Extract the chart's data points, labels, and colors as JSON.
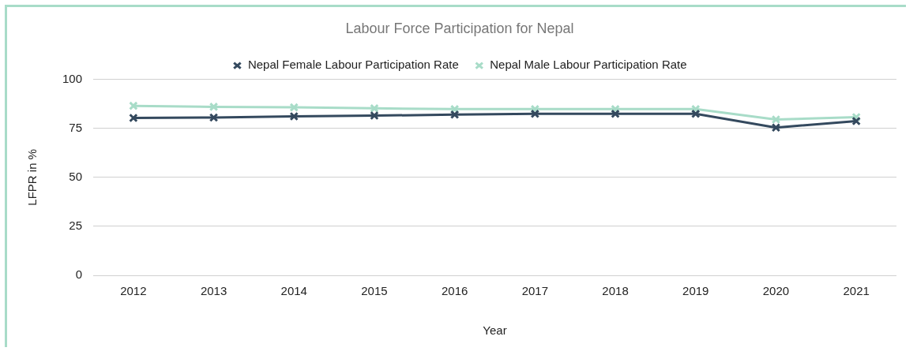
{
  "chart_data": {
    "type": "line",
    "title": "Labour Force Participation for Nepal",
    "xlabel": "Year",
    "ylabel": "LFPR in %",
    "categories": [
      "2012",
      "2013",
      "2014",
      "2015",
      "2016",
      "2017",
      "2018",
      "2019",
      "2020",
      "2021"
    ],
    "series": [
      {
        "name": "Nepal Female Labour Participation Rate",
        "color": "#34495e",
        "values": [
          80.3,
          80.5,
          81.1,
          81.5,
          82,
          82.4,
          82.4,
          82.4,
          75.4,
          78.7
        ]
      },
      {
        "name": "Nepal Male Labour Participation Rate",
        "color": "#a8dcc8",
        "values": [
          86.5,
          86,
          85.7,
          85.2,
          84.8,
          84.8,
          84.8,
          84.8,
          79.5,
          80.7
        ]
      }
    ],
    "ylim": [
      0,
      100
    ],
    "yticks": [
      0,
      25,
      50,
      75,
      100
    ],
    "grid": "y",
    "legend": "top",
    "marker": "cross",
    "line_style": "solid"
  }
}
